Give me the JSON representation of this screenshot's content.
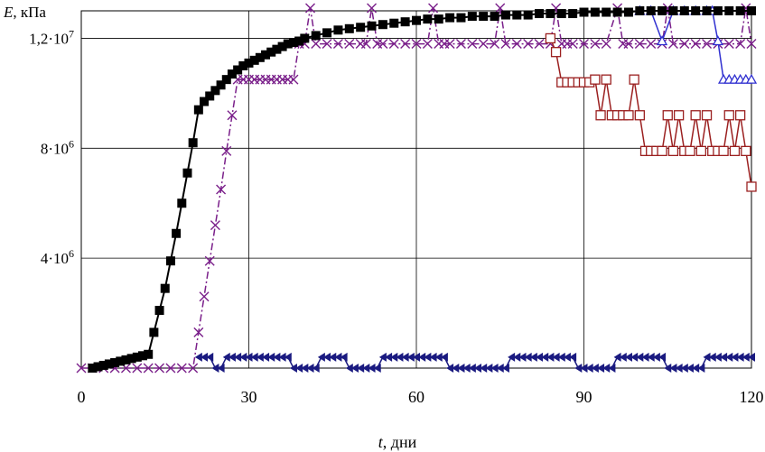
{
  "chart_data": {
    "type": "line",
    "ylabel_main": "E",
    "ylabel_unit": ", кПа",
    "xlabel_main": "t",
    "xlabel_unit": ", дни",
    "xlim": [
      0,
      120
    ],
    "ylim": [
      0,
      13000000
    ],
    "grid": true,
    "xticks": [
      {
        "value": 0,
        "label": "0"
      },
      {
        "value": 30,
        "label": "30"
      },
      {
        "value": 60,
        "label": "60"
      },
      {
        "value": 90,
        "label": "90"
      },
      {
        "value": 120,
        "label": "120"
      }
    ],
    "yticks": [
      {
        "value": 4000000,
        "base": "4·10",
        "exp": "6"
      },
      {
        "value": 8000000,
        "base": "8·10",
        "exp": "6"
      },
      {
        "value": 12000000,
        "base": "1,2·10",
        "exp": "7"
      }
    ],
    "series": [
      {
        "marker": "square-filled",
        "color": "#000000",
        "x": [
          2,
          3,
          4,
          5,
          6,
          7,
          8,
          9,
          10,
          11,
          12,
          13,
          14,
          15,
          16,
          17,
          18,
          19,
          20,
          21,
          22,
          23,
          24,
          25,
          26,
          27,
          28,
          29,
          30,
          31,
          32,
          33,
          34,
          35,
          36,
          37,
          38,
          39,
          40,
          42,
          44,
          46,
          48,
          50,
          52,
          54,
          56,
          58,
          60,
          62,
          64,
          66,
          68,
          70,
          72,
          74,
          76,
          78,
          80,
          82,
          84,
          86,
          88,
          90,
          92,
          94,
          96,
          98,
          100,
          102,
          104,
          106,
          108,
          110,
          112,
          114,
          116,
          118,
          120
        ],
        "y": [
          0,
          50000,
          100000,
          150000,
          200000,
          250000,
          300000,
          350000,
          400000,
          450000,
          500000,
          1300000,
          2100000,
          2900000,
          3900000,
          4900000,
          6000000,
          7100000,
          8200000,
          9400000,
          9700000,
          9900000,
          10100000,
          10300000,
          10500000,
          10700000,
          10850000,
          11000000,
          11100000,
          11200000,
          11300000,
          11400000,
          11500000,
          11600000,
          11700000,
          11800000,
          11850000,
          11900000,
          12000000,
          12100000,
          12200000,
          12300000,
          12350000,
          12400000,
          12450000,
          12500000,
          12550000,
          12600000,
          12650000,
          12700000,
          12700000,
          12750000,
          12750000,
          12800000,
          12800000,
          12800000,
          12850000,
          12850000,
          12850000,
          12900000,
          12900000,
          12900000,
          12900000,
          12950000,
          12950000,
          12950000,
          12950000,
          12950000,
          13000000,
          13000000,
          13000000,
          13000000,
          13000000,
          13000000,
          13000000,
          13000000,
          13000000,
          13000000,
          13000000
        ]
      },
      {
        "marker": "triangle-open",
        "color": "#3030d0",
        "x": [
          100,
          102,
          104,
          106,
          108,
          110,
          112,
          113,
          114,
          115,
          116,
          117,
          118,
          119,
          120
        ],
        "y": [
          13000000,
          13000000,
          11900000,
          13000000,
          13000000,
          13000000,
          13000000,
          13000000,
          11900000,
          10500000,
          10500000,
          10500000,
          10500000,
          10500000,
          10500000
        ]
      },
      {
        "marker": "square-open",
        "color": "#9b2020",
        "x": [
          84,
          85,
          86,
          87,
          88,
          89,
          90,
          91,
          92,
          93,
          94,
          95,
          96,
          97,
          98,
          99,
          100,
          101,
          102,
          103,
          104,
          105,
          106,
          107,
          108,
          109,
          110,
          111,
          112,
          113,
          114,
          115,
          116,
          117,
          118,
          119,
          120
        ],
        "y": [
          12000000,
          11500000,
          10400000,
          10400000,
          10400000,
          10400000,
          10400000,
          10400000,
          10500000,
          9200000,
          10500000,
          9200000,
          9200000,
          9200000,
          9200000,
          10500000,
          9200000,
          7900000,
          7900000,
          7900000,
          7900000,
          9200000,
          7900000,
          9200000,
          7900000,
          7900000,
          9200000,
          7900000,
          9200000,
          7900000,
          7900000,
          7900000,
          9200000,
          7900000,
          9200000,
          7900000,
          6600000
        ]
      },
      {
        "marker": "cross",
        "color": "#7a1f8a",
        "x": [
          0,
          2,
          4,
          6,
          8,
          10,
          12,
          14,
          16,
          18,
          20,
          21,
          22,
          23,
          24,
          25,
          26,
          27,
          28,
          29,
          30,
          31,
          32,
          33,
          34,
          35,
          36,
          37,
          38,
          39,
          40,
          41,
          42,
          44,
          46,
          48,
          50,
          51,
          52,
          53,
          54,
          56,
          58,
          60,
          62,
          63,
          64,
          65,
          66,
          68,
          70,
          72,
          74,
          75,
          76,
          78,
          80,
          82,
          84,
          85,
          86,
          87,
          88,
          90,
          92,
          94,
          96,
          97,
          98,
          100,
          102,
          104,
          105,
          106,
          108,
          110,
          112,
          114,
          116,
          118,
          119,
          120
        ],
        "y": [
          0,
          0,
          0,
          0,
          0,
          0,
          0,
          0,
          0,
          0,
          0,
          1300000,
          2600000,
          3900000,
          5200000,
          6500000,
          7900000,
          9200000,
          10500000,
          10500000,
          10500000,
          10500000,
          10500000,
          10500000,
          10500000,
          10500000,
          10500000,
          10500000,
          10500000,
          11800000,
          11800000,
          13100000,
          11800000,
          11800000,
          11800000,
          11800000,
          11800000,
          11800000,
          13100000,
          11800000,
          11800000,
          11800000,
          11800000,
          11800000,
          11800000,
          13100000,
          11800000,
          11800000,
          11800000,
          11800000,
          11800000,
          11800000,
          11800000,
          13100000,
          11800000,
          11800000,
          11800000,
          11800000,
          11800000,
          13100000,
          11800000,
          11800000,
          11800000,
          11800000,
          11800000,
          11800000,
          13100000,
          11800000,
          11800000,
          11800000,
          11800000,
          11800000,
          13100000,
          11800000,
          11800000,
          11800000,
          11800000,
          11800000,
          11800000,
          11800000,
          13100000,
          11800000
        ]
      },
      {
        "marker": "diamond-arrow",
        "color": "#1a1a80",
        "x": [
          21,
          22,
          23,
          24,
          25,
          26,
          27,
          28,
          29,
          30,
          31,
          32,
          33,
          34,
          35,
          36,
          37,
          38,
          39,
          40,
          41,
          42,
          43,
          44,
          45,
          46,
          47,
          48,
          49,
          50,
          51,
          52,
          53,
          54,
          55,
          56,
          57,
          58,
          59,
          60,
          61,
          62,
          63,
          64,
          65,
          66,
          67,
          68,
          69,
          70,
          71,
          72,
          73,
          74,
          75,
          76,
          77,
          78,
          79,
          80,
          81,
          82,
          83,
          84,
          85,
          86,
          87,
          88,
          89,
          90,
          91,
          92,
          93,
          94,
          95,
          96,
          97,
          98,
          99,
          100,
          101,
          102,
          103,
          104,
          105,
          106,
          107,
          108,
          109,
          110,
          111,
          112,
          113,
          114,
          115,
          116,
          117,
          118,
          119,
          120
        ],
        "y": [
          400000,
          400000,
          400000,
          0,
          0,
          400000,
          400000,
          400000,
          400000,
          400000,
          400000,
          400000,
          400000,
          400000,
          400000,
          400000,
          400000,
          0,
          0,
          0,
          0,
          0,
          400000,
          400000,
          400000,
          400000,
          400000,
          0,
          0,
          0,
          0,
          0,
          0,
          400000,
          400000,
          400000,
          400000,
          400000,
          400000,
          400000,
          400000,
          400000,
          400000,
          400000,
          400000,
          0,
          0,
          0,
          0,
          0,
          0,
          0,
          0,
          0,
          0,
          0,
          400000,
          400000,
          400000,
          400000,
          400000,
          400000,
          400000,
          400000,
          400000,
          400000,
          400000,
          400000,
          0,
          0,
          0,
          0,
          0,
          0,
          0,
          400000,
          400000,
          400000,
          400000,
          400000,
          400000,
          400000,
          400000,
          400000,
          0,
          0,
          0,
          0,
          0,
          0,
          0,
          400000,
          400000,
          400000,
          400000,
          400000,
          400000,
          400000,
          400000,
          400000
        ]
      }
    ]
  }
}
